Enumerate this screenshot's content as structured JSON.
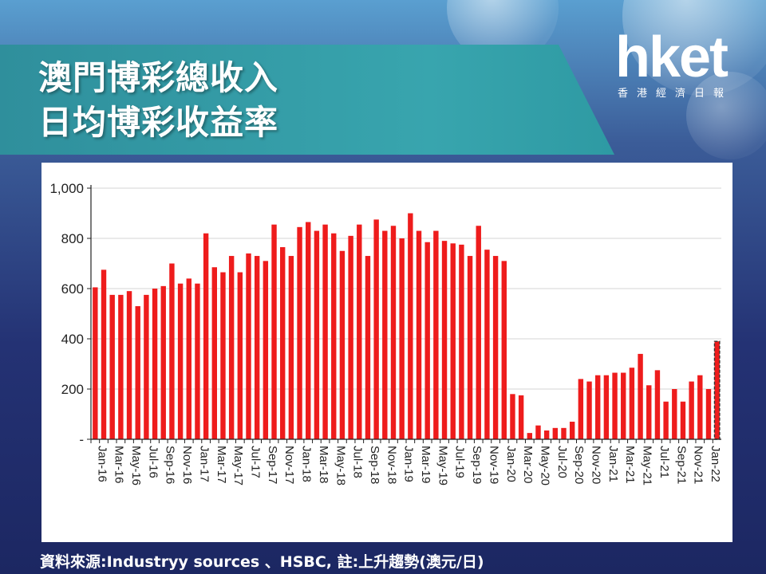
{
  "title_line1": "澳門博彩總收入",
  "title_line2": "日均博彩收益率",
  "logo": {
    "main": "hket",
    "sub": "香港經濟日報"
  },
  "footer": "資料來源:Industryy sources 、HSBC, 註:上升趨勢(澳元/日)",
  "chart_data": {
    "type": "bar",
    "bar_color": "#ee1c1c",
    "ylim": [
      0,
      1000
    ],
    "yticks": [
      "-",
      "200",
      "400",
      "600",
      "800",
      "1,000"
    ],
    "ytick_values": [
      0,
      200,
      400,
      600,
      800,
      1000
    ],
    "grid": true,
    "tick_labels": [
      "Jan-16",
      "Mar-16",
      "May-16",
      "Jul-16",
      "Sep-16",
      "Nov-16",
      "Jan-17",
      "Mar-17",
      "May-17",
      "Jul-17",
      "Sep-17",
      "Nov-17",
      "Jan-18",
      "Mar-18",
      "May-18",
      "Jul-18",
      "Sep-18",
      "Nov-18",
      "Jan-19",
      "Mar-19",
      "May-19",
      "Jul-19",
      "Sep-19",
      "Nov-19",
      "Jan-20",
      "Mar-20",
      "May-20",
      "Jul-20",
      "Sep-20",
      "Nov-20",
      "Jan-21",
      "Mar-21",
      "May-21",
      "Jul-21",
      "Sep-21",
      "Nov-21",
      "Jan-22"
    ],
    "values": [
      605,
      675,
      575,
      575,
      590,
      530,
      575,
      600,
      610,
      700,
      620,
      640,
      620,
      820,
      685,
      665,
      730,
      665,
      740,
      730,
      710,
      855,
      765,
      730,
      845,
      865,
      830,
      855,
      820,
      750,
      810,
      855,
      730,
      875,
      830,
      850,
      800,
      900,
      830,
      785,
      830,
      790,
      780,
      775,
      730,
      850,
      755,
      730,
      710,
      180,
      175,
      25,
      55,
      35,
      45,
      45,
      70,
      240,
      230,
      255,
      255,
      265,
      265,
      285,
      340,
      215,
      275,
      150,
      200,
      150,
      230,
      255,
      200,
      390
    ]
  }
}
